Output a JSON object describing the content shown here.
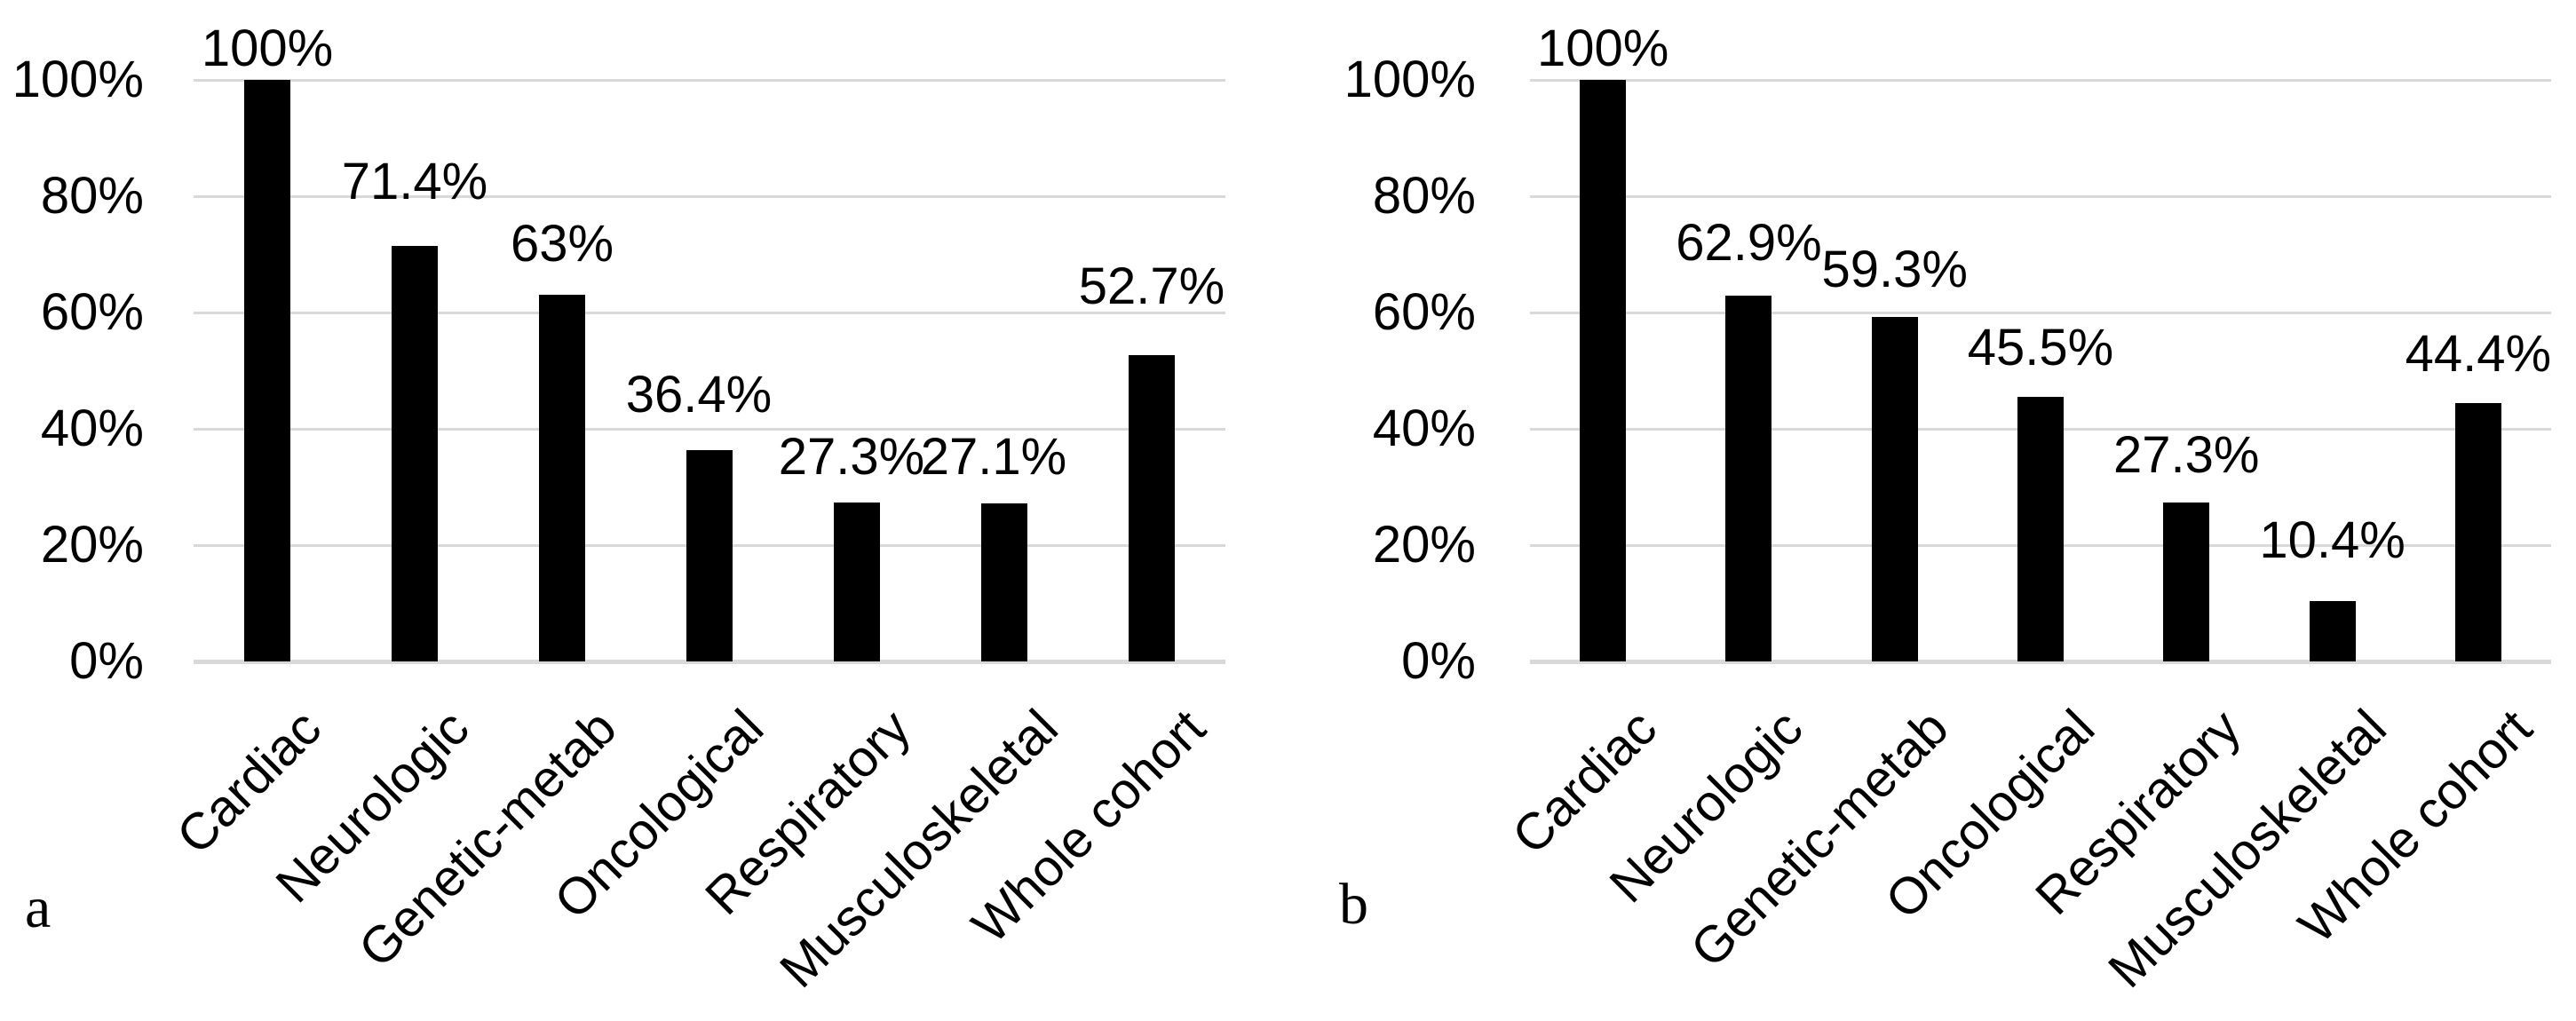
{
  "figure": {
    "background_color": "#ffffff",
    "text_color": "#000000"
  },
  "chart_data": [
    {
      "type": "bar",
      "panel_letter": "a",
      "title": "",
      "xlabel": "",
      "ylabel": "",
      "categories": [
        "Cardiac",
        "Neurologic",
        "Genetic-metab",
        "Oncological",
        "Respiratory",
        "Musculoskeletal",
        "Whole cohort"
      ],
      "values": [
        100,
        71.4,
        63,
        36.4,
        27.3,
        27.1,
        52.7
      ],
      "data_labels": [
        "100%",
        "71.4%",
        "63%",
        "36.4%",
        "27.3%",
        "27.1%",
        "52.7%"
      ],
      "y_tick_labels": [
        "100%",
        "80%",
        "60%",
        "40%",
        "20%",
        "0%"
      ],
      "y_tick_values": [
        100,
        80,
        60,
        40,
        20,
        0
      ],
      "ylim": [
        0,
        100
      ],
      "grid": true,
      "legend_position": "none",
      "bar_color": "#000000",
      "gridline_color": "#d9d9d9",
      "label_layout": {
        "dx": [
          0,
          0,
          0,
          -12,
          -6,
          -12,
          0
        ],
        "label_bottom_y": [
          78,
          228,
          298,
          468,
          538,
          538,
          346
        ]
      }
    },
    {
      "type": "bar",
      "panel_letter": "b",
      "title": "",
      "xlabel": "",
      "ylabel": "",
      "categories": [
        "Cardiac",
        "Neurologic",
        "Genetic-metab",
        "Oncological",
        "Respiratory",
        "Musculoskeletal",
        "Whole cohort"
      ],
      "values": [
        100,
        62.9,
        59.3,
        45.5,
        27.3,
        10.4,
        44.4
      ],
      "data_labels": [
        "100%",
        "62.9%",
        "59.3%",
        "45.5%",
        "27.3%",
        "10.4%",
        "44.4%"
      ],
      "y_tick_labels": [
        "100%",
        "80%",
        "60%",
        "40%",
        "20%",
        "0%"
      ],
      "y_tick_values": [
        100,
        80,
        60,
        40,
        20,
        0
      ],
      "ylim": [
        0,
        100
      ],
      "grid": true,
      "legend_position": "none",
      "bar_color": "#000000",
      "gridline_color": "#d9d9d9",
      "label_layout": {
        "dx": [
          0,
          0,
          0,
          0,
          0,
          0,
          0
        ],
        "label_bottom_y": [
          78,
          297,
          327,
          415,
          536,
          632,
          422
        ]
      }
    }
  ]
}
